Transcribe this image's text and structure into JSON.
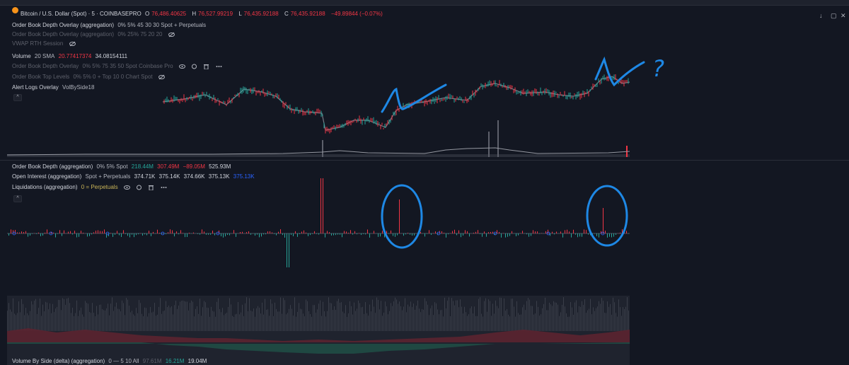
{
  "symbol": {
    "title": "Bitcoin / U.S. Dollar (Spot) · 5 · COINBASEPRO",
    "open_label": "O",
    "open": "76,486.40625",
    "high_label": "H",
    "high": "76,527.99219",
    "low_label": "L",
    "low": "76,435.92188",
    "close_label": "C",
    "close": "76,435.92188",
    "change": "−49.89844 (−0.07%)"
  },
  "indicators": {
    "obdo": {
      "name": "Order Book Depth Overlay (aggregation)",
      "params": "0% 5% 45 30 30 Spot + Perpetuals"
    },
    "obdo2": {
      "name": "Order Book Depth Overlay (aggregation)",
      "params": "0% 25% 75 20 20"
    },
    "vwap": {
      "name": "VWAP RTH Session"
    },
    "volume": {
      "name": "Volume",
      "params": "20 SMA",
      "v1": "20.77417374",
      "v2": "34.08154111"
    },
    "obdo3": {
      "name": "Order Book Depth Overlay",
      "params": "0% 5% 75 35 50 Spot Coinbase Pro"
    },
    "obtl": {
      "name": "Order Book Top Levels",
      "params": "0% 5% 0 + Top 10 0 Chart Spot"
    },
    "alert": {
      "name": "Alert Logs Overlay",
      "params": "VolBySide18"
    },
    "obd": {
      "name": "Order Book Depth (aggregation)",
      "params": "0% 5% Spot",
      "v1": "218.44M",
      "v2": "307.49M",
      "v3": "−89.05M",
      "v4": "525.93M"
    },
    "oi": {
      "name": "Open Interest (aggregation)",
      "params": "Spot + Perpetuals",
      "o": "374.71K",
      "h": "375.14K",
      "l": "374.66K",
      "c": "375.13K",
      "last": "375.13K"
    },
    "liq": {
      "name": "Liquidations (aggregation)",
      "params": "0 = Perpetuals"
    },
    "vbs": {
      "name": "Volume By Side (delta) (aggregation)",
      "params": "0 — 5 10 All",
      "v1": "97.61M",
      "v2": "16.21M",
      "v3": "19.04M"
    }
  },
  "annotations": {
    "question_mark": "?"
  },
  "collapse_glyph": "^",
  "colors": {
    "bg": "#131722",
    "up": "#26a69a",
    "down": "#f23645",
    "volume_price": "#f23645",
    "ink": "#1e88e5",
    "oi_last": "#2962ff"
  }
}
